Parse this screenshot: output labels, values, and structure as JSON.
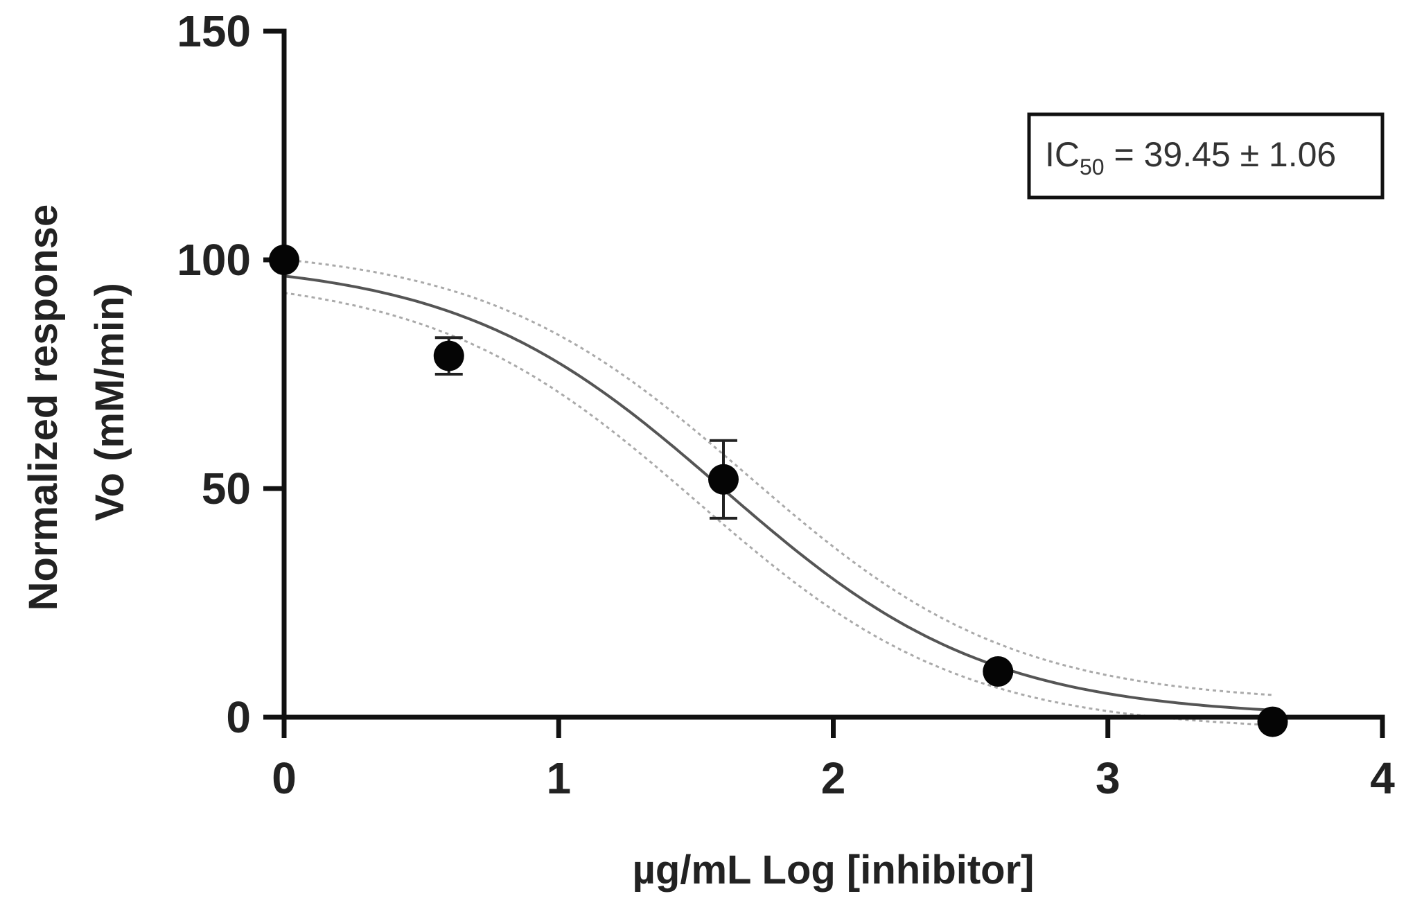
{
  "chart_data": {
    "type": "scatter",
    "title": "",
    "xlabel": "µg/mL Log [inhibitor]",
    "ylabel_lines": [
      "Normalized response",
      "Vo (mM/min)"
    ],
    "xlim": [
      0,
      4
    ],
    "ylim": [
      0,
      150
    ],
    "x_ticks": [
      0,
      1,
      2,
      3,
      4
    ],
    "y_ticks": [
      0,
      50,
      100,
      150
    ],
    "grid": false,
    "legend": "none",
    "points": [
      {
        "x": 0.0,
        "y": 100,
        "err": 0
      },
      {
        "x": 0.6,
        "y": 79,
        "err": 4
      },
      {
        "x": 1.6,
        "y": 52,
        "err": 8.5
      },
      {
        "x": 2.6,
        "y": 10,
        "err": 0
      },
      {
        "x": 3.6,
        "y": -1,
        "err": 0
      }
    ],
    "fit": {
      "model": "four-parameter logistic (decreasing)",
      "top": 100,
      "bottom": 0,
      "logIC50": 1.596,
      "hill": 0.9,
      "x_range": [
        0,
        3.6
      ],
      "confidence_band": true
    },
    "annotation": {
      "prefix": "IC",
      "subscript": "50",
      "suffix": " = 39.45 ± 1.06",
      "position": "top-right"
    },
    "colors": {
      "axis": "#111111",
      "points": "#050505",
      "fit_line": "#555555",
      "confidence_band": "#aaaaaa"
    }
  }
}
